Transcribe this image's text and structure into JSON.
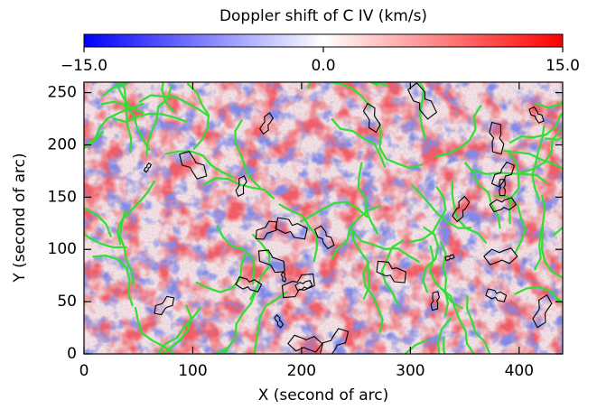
{
  "chart_data": {
    "type": "heatmap",
    "title": "Doppler shift of C IV (km/s)",
    "x_label": "X (second of arc)",
    "y_label": "Y (second of arc)",
    "xlim": [
      0,
      440
    ],
    "xticks": [
      0,
      100,
      200,
      300,
      400
    ],
    "ylim": [
      0,
      260
    ],
    "yticks": [
      0,
      50,
      100,
      150,
      200,
      250
    ],
    "colorbar": {
      "lim": [
        -15,
        15
      ],
      "colors": [
        "#0000ff",
        "#ffffff",
        "#ff0000"
      ],
      "ticks": [
        {
          "value": -15,
          "label": "−15.0"
        },
        {
          "value": 0,
          "label": "0.0"
        },
        {
          "value": 15,
          "label": "15.0"
        }
      ]
    }
  }
}
